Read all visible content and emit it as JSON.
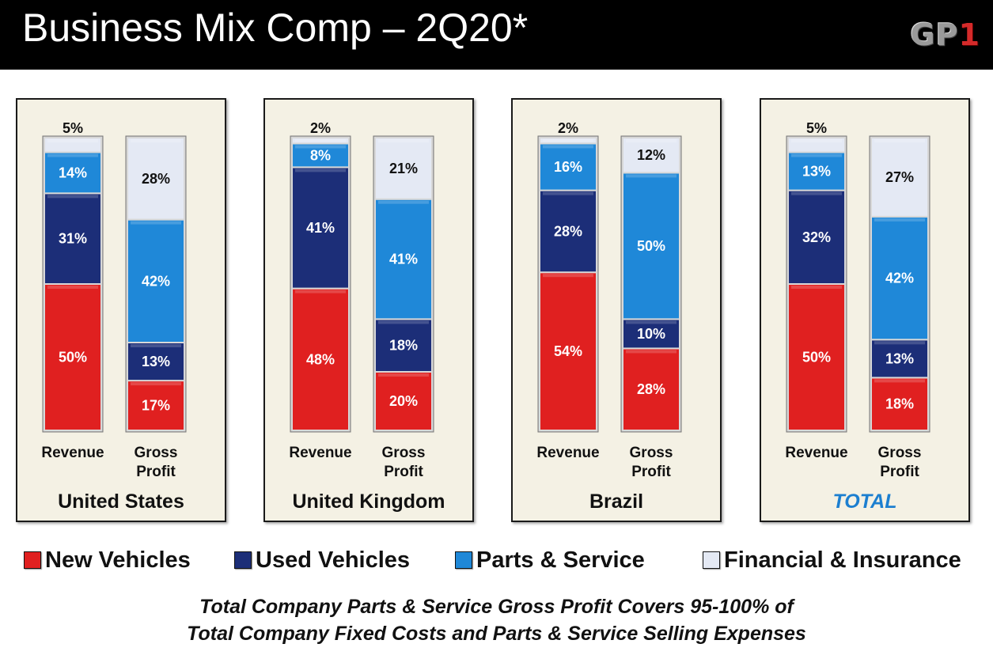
{
  "header": {
    "title": "Business Mix Comp – 2Q20*",
    "logo_text": "GP",
    "logo_accent": "1"
  },
  "chart_data": [
    {
      "type": "bar",
      "stacked": true,
      "title": "United States",
      "categories": [
        "Revenue",
        "Gross Profit"
      ],
      "series": [
        {
          "name": "New Vehicles",
          "values": [
            50,
            17
          ]
        },
        {
          "name": "Used Vehicles",
          "values": [
            31,
            13
          ]
        },
        {
          "name": "Parts & Service",
          "values": [
            14,
            42
          ]
        },
        {
          "name": "Financial & Insurance",
          "values": [
            5,
            28
          ]
        }
      ]
    },
    {
      "type": "bar",
      "stacked": true,
      "title": "United Kingdom",
      "categories": [
        "Revenue",
        "Gross Profit"
      ],
      "series": [
        {
          "name": "New Vehicles",
          "values": [
            48,
            20
          ]
        },
        {
          "name": "Used Vehicles",
          "values": [
            41,
            18
          ]
        },
        {
          "name": "Parts & Service",
          "values": [
            8,
            41
          ]
        },
        {
          "name": "Financial & Insurance",
          "values": [
            2,
            21
          ]
        }
      ]
    },
    {
      "type": "bar",
      "stacked": true,
      "title": "Brazil",
      "categories": [
        "Revenue",
        "Gross Profit"
      ],
      "series": [
        {
          "name": "New Vehicles",
          "values": [
            54,
            28
          ]
        },
        {
          "name": "Used Vehicles",
          "values": [
            28,
            10
          ]
        },
        {
          "name": "Parts & Service",
          "values": [
            16,
            50
          ]
        },
        {
          "name": "Financial & Insurance",
          "values": [
            2,
            12
          ]
        }
      ]
    },
    {
      "type": "bar",
      "stacked": true,
      "title": "TOTAL",
      "categories": [
        "Revenue",
        "Gross Profit"
      ],
      "series": [
        {
          "name": "New Vehicles",
          "values": [
            50,
            18
          ]
        },
        {
          "name": "Used Vehicles",
          "values": [
            32,
            13
          ]
        },
        {
          "name": "Parts & Service",
          "values": [
            13,
            42
          ]
        },
        {
          "name": "Financial & Insurance",
          "values": [
            5,
            27
          ]
        }
      ]
    }
  ],
  "category_labels": [
    {
      "line1": "Revenue",
      "line2": ""
    },
    {
      "line1": "Gross",
      "line2": "Profit"
    }
  ],
  "colors": {
    "New Vehicles": "#e02020",
    "Used Vehicles": "#1c2e78",
    "Parts & Service": "#1f88d8",
    "Financial & Insurance": "#e4e9f4",
    "total_title": "#1c7fd0"
  },
  "legend": [
    {
      "label": "New Vehicles",
      "color": "#e02020"
    },
    {
      "label": "Used Vehicles",
      "color": "#1c2e78"
    },
    {
      "label": "Parts & Service",
      "color": "#1f88d8"
    },
    {
      "label": "Financial & Insurance",
      "color": "#e4e9f4"
    }
  ],
  "footnote": {
    "line1": "Total Company Parts & Service Gross Profit Covers 95-100% of",
    "line2": "Total Company Fixed Costs and Parts & Service Selling Expenses"
  }
}
